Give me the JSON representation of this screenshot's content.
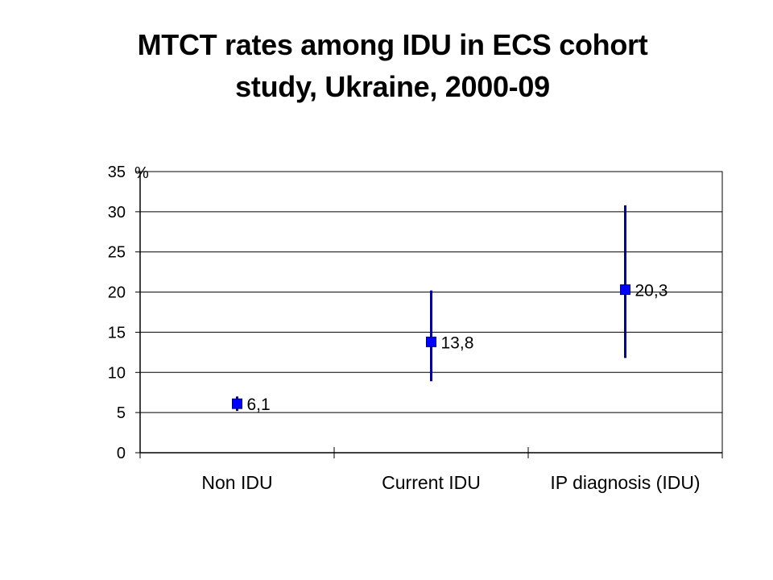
{
  "title": {
    "line1": "MTCT rates among IDU in ECS cohort",
    "line2": "study, Ukraine, 2000-09"
  },
  "chart_data": {
    "type": "scatter",
    "title": "MTCT rates among IDU in ECS cohort study, Ukraine, 2000-09",
    "unit_label": "%",
    "categories": [
      "Non IDU",
      "Current IDU",
      "IP diagnosis (IDU)"
    ],
    "values": [
      6.1,
      13.8,
      20.3
    ],
    "value_labels": [
      "6,1",
      "13,8",
      "20,3"
    ],
    "error_low": [
      5.2,
      8.9,
      11.8
    ],
    "error_high": [
      7.0,
      20.2,
      30.8
    ],
    "yticks": [
      0,
      5,
      10,
      15,
      20,
      25,
      30,
      35
    ],
    "ylim": [
      0,
      35
    ],
    "grid": true,
    "marker_color": "#0000ff",
    "error_bar_color": "#000080"
  }
}
